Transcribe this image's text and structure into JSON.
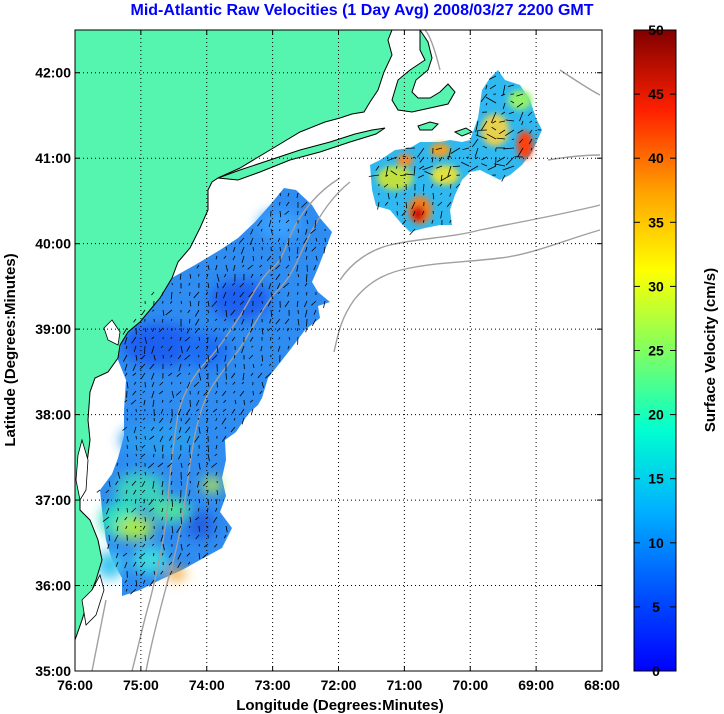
{
  "title": "Mid-Atlantic Raw Velocities (1 Day Avg) 2008/03/27 2200 GMT",
  "map": {
    "xlabel": "Longitude (Degrees:Minutes)",
    "ylabel": "Latitude (Degrees:Minutes)",
    "x_ticks": [
      "76:00",
      "75:00",
      "74:00",
      "73:00",
      "72:00",
      "71:00",
      "70:00",
      "69:00",
      "68:00"
    ],
    "y_ticks": [
      "35:00",
      "36:00",
      "37:00",
      "38:00",
      "39:00",
      "40:00",
      "41:00",
      "42:00"
    ],
    "lon_range": [
      -76,
      -68
    ],
    "lat_range": [
      35,
      42.5
    ],
    "grid": "dotted",
    "land_color": "#55f5b0",
    "bathymetry_color": "#a0a0a0",
    "arrow_color": "#000000"
  },
  "colorbar": {
    "label": "Surface Velocity (cm/s)",
    "ticks": [
      "0",
      "5",
      "10",
      "15",
      "20",
      "25",
      "30",
      "35",
      "40",
      "45",
      "50"
    ],
    "range": [
      0,
      50
    ],
    "colormap": "jet"
  }
}
